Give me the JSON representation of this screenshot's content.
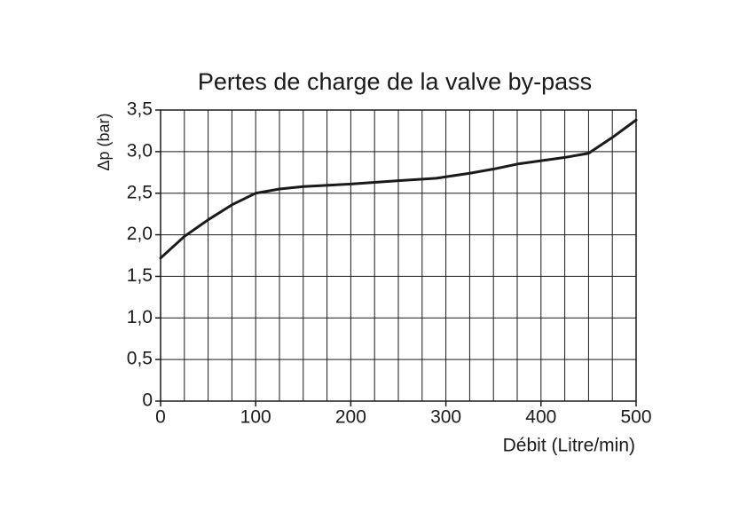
{
  "chart_data": {
    "type": "line",
    "title": "Pertes de charge de la valve by-pass",
    "x_label": "Débit (Litre/min)",
    "y_label": "Δp (bar)",
    "x": [
      0,
      25,
      50,
      75,
      100,
      125,
      150,
      200,
      250,
      290,
      325,
      350,
      375,
      400,
      425,
      450,
      475,
      500
    ],
    "series": [
      {
        "name": "Δp",
        "color": "#1a1a1a",
        "values": [
          1.72,
          1.98,
          2.18,
          2.36,
          2.5,
          2.55,
          2.58,
          2.61,
          2.65,
          2.68,
          2.74,
          2.79,
          2.85,
          2.89,
          2.93,
          2.98,
          3.17,
          3.38
        ]
      }
    ],
    "xlim": [
      0,
      500
    ],
    "ylim": [
      0,
      3.5
    ],
    "xticks": [
      0,
      100,
      200,
      300,
      400,
      500
    ],
    "xgrid": [
      0,
      25,
      50,
      75,
      100,
      125,
      150,
      175,
      200,
      225,
      250,
      275,
      300,
      325,
      350,
      375,
      400,
      425,
      450,
      475,
      500
    ],
    "yticks": [
      0,
      {
        "value": 0.5,
        "label": "0,5"
      },
      {
        "value": 1,
        "label": "1,0"
      },
      {
        "value": 1.5,
        "label": "1,5"
      },
      {
        "value": 2,
        "label": "2,0"
      },
      {
        "value": 2.5,
        "label": "2,5"
      },
      {
        "value": 3,
        "label": "3,0"
      },
      {
        "value": 3.5,
        "label": "3,5"
      }
    ],
    "grid": true
  }
}
